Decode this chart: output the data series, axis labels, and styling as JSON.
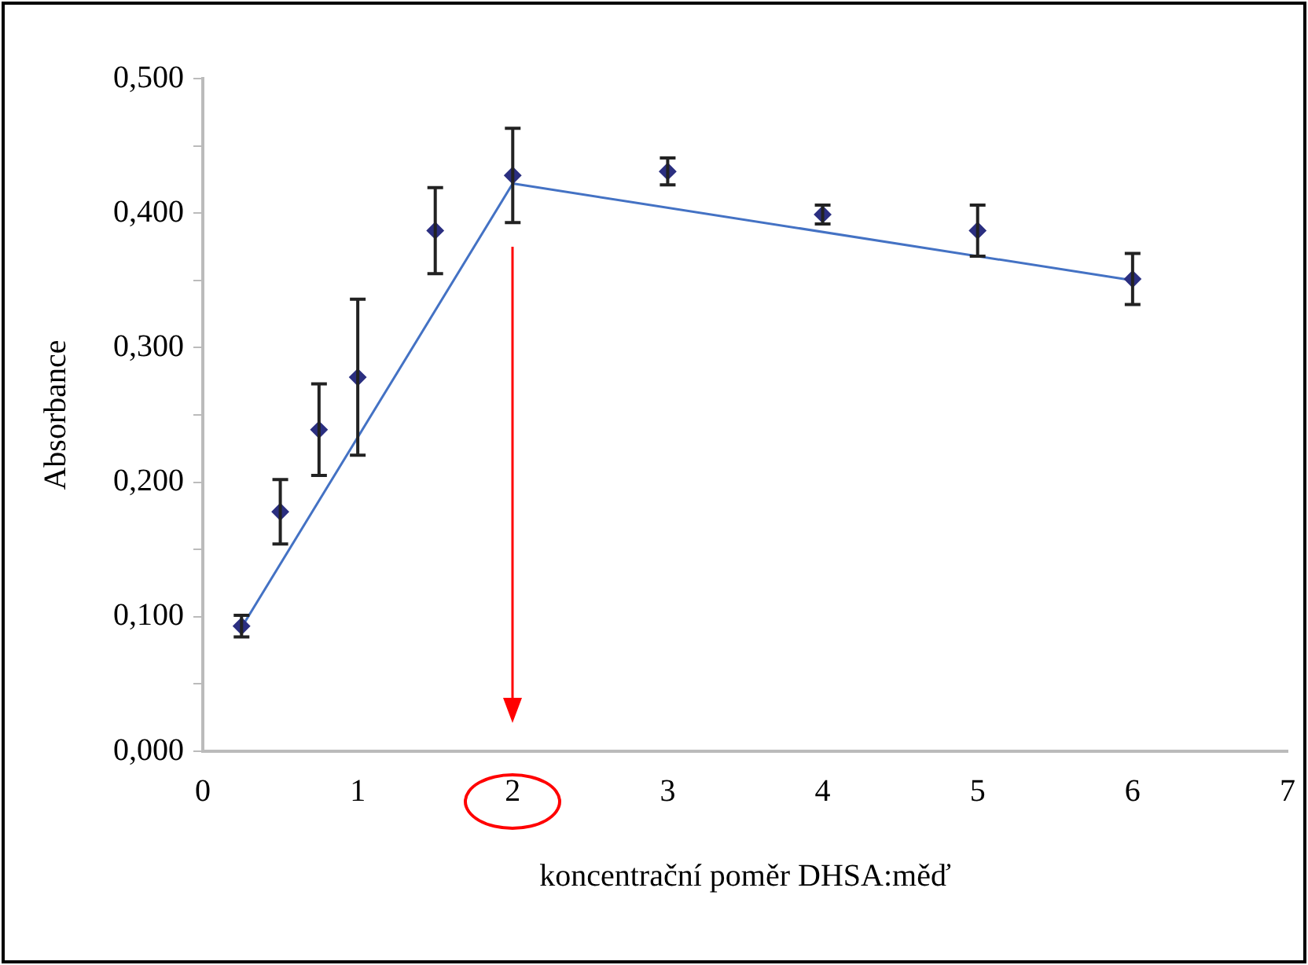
{
  "chart_data": {
    "type": "scatter",
    "xlabel": "koncentrační poměr DHSA:měď",
    "ylabel": "Absorbance",
    "xlim": [
      0,
      7
    ],
    "xticks": [
      0,
      1,
      2,
      3,
      4,
      5,
      6,
      7
    ],
    "ylim": [
      0,
      0.5
    ],
    "yticks": [
      {
        "value": 0,
        "label": "0,000"
      },
      {
        "value": 0.05,
        "label": null
      },
      {
        "value": 0.1,
        "label": "0,100"
      },
      {
        "value": 0.15,
        "label": null
      },
      {
        "value": 0.2,
        "label": "0,200"
      },
      {
        "value": 0.25,
        "label": null
      },
      {
        "value": 0.3,
        "label": "0,300"
      },
      {
        "value": 0.35,
        "label": null
      },
      {
        "value": 0.4,
        "label": "0,400"
      },
      {
        "value": 0.45,
        "label": null
      },
      {
        "value": 0.5,
        "label": "0,500"
      }
    ],
    "grid": false,
    "legend": false,
    "marker": "diamond",
    "series": [
      {
        "color": "#2b2f80",
        "x": [
          0.25,
          0.5,
          0.75,
          1,
          1.5,
          2,
          3,
          4,
          5,
          6
        ],
        "values": [
          0.093,
          0.178,
          0.239,
          0.278,
          0.387,
          0.428,
          0.431,
          0.399,
          0.387,
          0.351
        ],
        "errors": [
          0.008,
          0.024,
          0.034,
          0.058,
          0.032,
          0.035,
          0.01,
          0.007,
          0.019,
          0.019
        ]
      },
      {
        "type": "line",
        "color": "#4472c4",
        "marker": "none",
        "x": [
          0.25,
          2,
          6
        ],
        "values": [
          0.092,
          0.422,
          0.35
        ]
      }
    ],
    "ref_lines": [
      {
        "axis": "x",
        "value": 2,
        "color": "#ff0000"
      }
    ]
  }
}
